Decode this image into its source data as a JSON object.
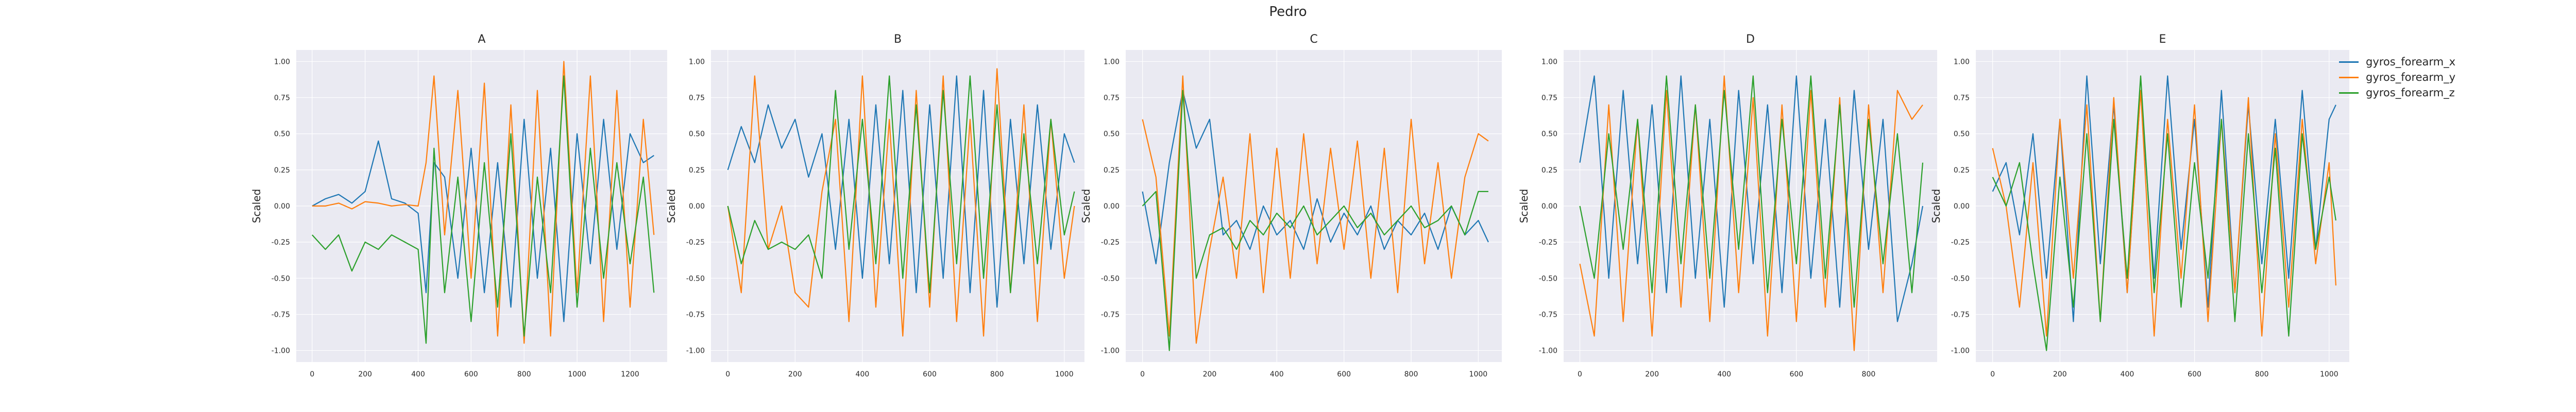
{
  "figure": {
    "title": "Pedro",
    "legend": [
      {
        "name": "gyros_forearm_x",
        "color": "#1f77b4"
      },
      {
        "name": "gyros_forearm_y",
        "color": "#ff7f0e"
      },
      {
        "name": "gyros_forearm_z",
        "color": "#2ca02c"
      }
    ]
  },
  "style": {
    "plot_background": "#eaeaf2",
    "grid_color": "#ffffff",
    "text_color": "#262626"
  },
  "chart_data": [
    {
      "type": "line",
      "title": "A",
      "xlabel": "",
      "ylabel": "Scaled",
      "xlim": [
        -60,
        1340
      ],
      "ylim": [
        -1.08,
        1.08
      ],
      "xticks": [
        0,
        200,
        400,
        600,
        800,
        1000,
        1200
      ],
      "yticks": [
        -1.0,
        -0.75,
        -0.5,
        -0.25,
        0.0,
        0.25,
        0.5,
        0.75,
        1.0
      ],
      "grid": true,
      "series": [
        {
          "name": "gyros_forearm_x",
          "color": "#1f77b4",
          "x": [
            0,
            50,
            100,
            150,
            200,
            250,
            300,
            350,
            400,
            430,
            460,
            500,
            550,
            600,
            650,
            700,
            750,
            800,
            850,
            900,
            950,
            1000,
            1050,
            1100,
            1150,
            1200,
            1250,
            1290
          ],
          "y": [
            0.0,
            0.05,
            0.08,
            0.02,
            0.1,
            0.45,
            0.05,
            0.02,
            -0.05,
            -0.6,
            0.3,
            0.2,
            -0.5,
            0.4,
            -0.6,
            0.3,
            -0.7,
            0.6,
            -0.5,
            0.4,
            -0.8,
            0.5,
            -0.4,
            0.6,
            -0.3,
            0.5,
            0.3,
            0.35
          ]
        },
        {
          "name": "gyros_forearm_y",
          "color": "#ff7f0e",
          "x": [
            0,
            50,
            100,
            150,
            200,
            250,
            300,
            350,
            400,
            430,
            460,
            500,
            550,
            600,
            650,
            700,
            750,
            800,
            850,
            900,
            950,
            1000,
            1050,
            1100,
            1150,
            1200,
            1250,
            1290
          ],
          "y": [
            0.0,
            0.0,
            0.02,
            -0.02,
            0.03,
            0.02,
            0.0,
            0.01,
            0.0,
            0.3,
            0.9,
            -0.2,
            0.8,
            -0.5,
            0.85,
            -0.9,
            0.7,
            -0.95,
            0.8,
            -0.9,
            1.0,
            -0.6,
            0.9,
            -0.8,
            0.8,
            -0.7,
            0.6,
            -0.2
          ]
        },
        {
          "name": "gyros_forearm_z",
          "color": "#2ca02c",
          "x": [
            0,
            50,
            100,
            150,
            200,
            250,
            300,
            350,
            400,
            430,
            460,
            500,
            550,
            600,
            650,
            700,
            750,
            800,
            850,
            900,
            950,
            1000,
            1050,
            1100,
            1150,
            1200,
            1250,
            1290
          ],
          "y": [
            -0.2,
            -0.3,
            -0.2,
            -0.45,
            -0.25,
            -0.3,
            -0.2,
            -0.25,
            -0.3,
            -0.95,
            0.4,
            -0.6,
            0.2,
            -0.8,
            0.3,
            -0.7,
            0.5,
            -0.9,
            0.2,
            -0.6,
            0.9,
            -0.7,
            0.4,
            -0.5,
            0.3,
            -0.4,
            0.2,
            -0.6
          ]
        }
      ]
    },
    {
      "type": "line",
      "title": "B",
      "xlabel": "",
      "ylabel": "Scaled",
      "xlim": [
        -50,
        1060
      ],
      "ylim": [
        -1.08,
        1.08
      ],
      "xticks": [
        0,
        200,
        400,
        600,
        800,
        1000
      ],
      "yticks": [
        -1.0,
        -0.75,
        -0.5,
        -0.25,
        0.0,
        0.25,
        0.5,
        0.75,
        1.0
      ],
      "grid": true,
      "series": [
        {
          "name": "gyros_forearm_x",
          "color": "#1f77b4",
          "x": [
            0,
            40,
            80,
            120,
            160,
            200,
            240,
            280,
            320,
            360,
            400,
            440,
            480,
            520,
            560,
            600,
            640,
            680,
            720,
            760,
            800,
            840,
            880,
            920,
            960,
            1000,
            1030
          ],
          "y": [
            0.25,
            0.55,
            0.3,
            0.7,
            0.4,
            0.6,
            0.2,
            0.5,
            -0.3,
            0.6,
            -0.5,
            0.7,
            -0.4,
            0.8,
            -0.6,
            0.7,
            -0.5,
            0.9,
            -0.6,
            0.8,
            -0.7,
            0.6,
            -0.4,
            0.7,
            -0.3,
            0.5,
            0.3
          ]
        },
        {
          "name": "gyros_forearm_y",
          "color": "#ff7f0e",
          "x": [
            0,
            40,
            80,
            120,
            160,
            200,
            240,
            280,
            320,
            360,
            400,
            440,
            480,
            520,
            560,
            600,
            640,
            680,
            720,
            760,
            800,
            840,
            880,
            920,
            960,
            1000,
            1030
          ],
          "y": [
            0.0,
            -0.6,
            0.9,
            -0.3,
            0.0,
            -0.6,
            -0.7,
            0.1,
            0.6,
            -0.8,
            0.9,
            -0.7,
            0.6,
            -0.9,
            0.8,
            -0.7,
            0.9,
            -0.8,
            0.6,
            -0.9,
            0.95,
            -0.6,
            0.7,
            -0.8,
            0.6,
            -0.5,
            0.0
          ]
        },
        {
          "name": "gyros_forearm_z",
          "color": "#2ca02c",
          "x": [
            0,
            40,
            80,
            120,
            160,
            200,
            240,
            280,
            320,
            360,
            400,
            440,
            480,
            520,
            560,
            600,
            640,
            680,
            720,
            760,
            800,
            840,
            880,
            920,
            960,
            1000,
            1030
          ],
          "y": [
            0.0,
            -0.4,
            -0.1,
            -0.3,
            -0.25,
            -0.3,
            -0.2,
            -0.5,
            0.8,
            -0.3,
            0.6,
            -0.4,
            0.9,
            -0.5,
            0.7,
            -0.6,
            0.8,
            -0.4,
            0.9,
            -0.5,
            0.7,
            -0.6,
            0.5,
            -0.4,
            0.6,
            -0.2,
            0.1
          ]
        }
      ]
    },
    {
      "type": "line",
      "title": "C",
      "xlabel": "",
      "ylabel": "Scaled",
      "xlim": [
        -50,
        1070
      ],
      "ylim": [
        -1.08,
        1.08
      ],
      "xticks": [
        0,
        200,
        400,
        600,
        800,
        1000
      ],
      "yticks": [
        -1.0,
        -0.75,
        -0.5,
        -0.25,
        0.0,
        0.25,
        0.5,
        0.75,
        1.0
      ],
      "grid": true,
      "series": [
        {
          "name": "gyros_forearm_x",
          "color": "#1f77b4",
          "x": [
            0,
            40,
            80,
            120,
            160,
            200,
            240,
            280,
            320,
            360,
            400,
            440,
            480,
            520,
            560,
            600,
            640,
            680,
            720,
            760,
            800,
            840,
            880,
            920,
            960,
            1000,
            1030
          ],
          "y": [
            0.1,
            -0.4,
            0.3,
            0.8,
            0.4,
            0.6,
            -0.2,
            -0.1,
            -0.3,
            0.0,
            -0.2,
            -0.1,
            -0.3,
            0.05,
            -0.25,
            -0.05,
            -0.2,
            0.0,
            -0.3,
            -0.1,
            -0.2,
            -0.05,
            -0.3,
            0.0,
            -0.2,
            -0.1,
            -0.25
          ]
        },
        {
          "name": "gyros_forearm_y",
          "color": "#ff7f0e",
          "x": [
            0,
            40,
            80,
            120,
            160,
            200,
            240,
            280,
            320,
            360,
            400,
            440,
            480,
            520,
            560,
            600,
            640,
            680,
            720,
            760,
            800,
            840,
            880,
            920,
            960,
            1000,
            1030
          ],
          "y": [
            0.6,
            0.2,
            -0.9,
            0.9,
            -0.95,
            -0.3,
            0.2,
            -0.5,
            0.5,
            -0.6,
            0.4,
            -0.5,
            0.5,
            -0.4,
            0.4,
            -0.3,
            0.45,
            -0.5,
            0.4,
            -0.6,
            0.6,
            -0.4,
            0.3,
            -0.5,
            0.2,
            0.5,
            0.45
          ]
        },
        {
          "name": "gyros_forearm_z",
          "color": "#2ca02c",
          "x": [
            0,
            40,
            80,
            120,
            160,
            200,
            240,
            280,
            320,
            360,
            400,
            440,
            480,
            520,
            560,
            600,
            640,
            680,
            720,
            760,
            800,
            840,
            880,
            920,
            960,
            1000,
            1030
          ],
          "y": [
            0.0,
            0.1,
            -1.0,
            0.8,
            -0.5,
            -0.2,
            -0.15,
            -0.3,
            -0.1,
            -0.2,
            -0.05,
            -0.15,
            0.0,
            -0.2,
            -0.1,
            0.0,
            -0.15,
            -0.05,
            -0.2,
            -0.1,
            0.0,
            -0.15,
            -0.1,
            0.0,
            -0.2,
            0.1,
            0.1
          ]
        }
      ]
    },
    {
      "type": "line",
      "title": "D",
      "xlabel": "",
      "ylabel": "Scaled",
      "xlim": [
        -45,
        990
      ],
      "ylim": [
        -1.08,
        1.08
      ],
      "xticks": [
        0,
        200,
        400,
        600,
        800
      ],
      "yticks": [
        -1.0,
        -0.75,
        -0.5,
        -0.25,
        0.0,
        0.25,
        0.5,
        0.75,
        1.0
      ],
      "grid": true,
      "series": [
        {
          "name": "gyros_forearm_x",
          "color": "#1f77b4",
          "x": [
            0,
            40,
            80,
            120,
            160,
            200,
            240,
            280,
            320,
            360,
            400,
            440,
            480,
            520,
            560,
            600,
            640,
            680,
            720,
            760,
            800,
            840,
            880,
            920,
            950
          ],
          "y": [
            0.3,
            0.9,
            -0.5,
            0.8,
            -0.4,
            0.7,
            -0.6,
            0.9,
            -0.5,
            0.6,
            -0.7,
            0.8,
            -0.4,
            0.7,
            -0.6,
            0.9,
            -0.5,
            0.6,
            -0.7,
            0.8,
            -0.3,
            0.6,
            -0.8,
            -0.4,
            0.0
          ]
        },
        {
          "name": "gyros_forearm_y",
          "color": "#ff7f0e",
          "x": [
            0,
            40,
            80,
            120,
            160,
            200,
            240,
            280,
            320,
            360,
            400,
            440,
            480,
            520,
            560,
            600,
            640,
            680,
            720,
            760,
            800,
            840,
            880,
            920,
            950
          ],
          "y": [
            -0.4,
            -0.9,
            0.7,
            -0.8,
            0.6,
            -0.9,
            0.8,
            -0.7,
            0.7,
            -0.8,
            0.9,
            -0.6,
            0.75,
            -0.9,
            0.7,
            -0.8,
            0.8,
            -0.7,
            0.75,
            -1.0,
            0.7,
            -0.6,
            0.8,
            0.6,
            0.7
          ]
        },
        {
          "name": "gyros_forearm_z",
          "color": "#2ca02c",
          "x": [
            0,
            40,
            80,
            120,
            160,
            200,
            240,
            280,
            320,
            360,
            400,
            440,
            480,
            520,
            560,
            600,
            640,
            680,
            720,
            760,
            800,
            840,
            880,
            920,
            950
          ],
          "y": [
            0.0,
            -0.5,
            0.5,
            -0.3,
            0.6,
            -0.6,
            0.9,
            -0.4,
            0.7,
            -0.5,
            0.8,
            -0.3,
            0.9,
            -0.6,
            0.6,
            -0.4,
            0.9,
            -0.5,
            0.7,
            -0.7,
            0.6,
            -0.4,
            0.5,
            -0.6,
            0.3
          ]
        }
      ]
    },
    {
      "type": "line",
      "title": "E",
      "xlabel": "",
      "ylabel": "Scaled",
      "xlim": [
        -50,
        1060
      ],
      "ylim": [
        -1.08,
        1.08
      ],
      "xticks": [
        0,
        200,
        400,
        600,
        800,
        1000
      ],
      "yticks": [
        -1.0,
        -0.75,
        -0.5,
        -0.25,
        0.0,
        0.25,
        0.5,
        0.75,
        1.0
      ],
      "grid": true,
      "series": [
        {
          "name": "gyros_forearm_x",
          "color": "#1f77b4",
          "x": [
            0,
            40,
            80,
            120,
            160,
            200,
            240,
            280,
            320,
            360,
            400,
            440,
            480,
            520,
            560,
            600,
            640,
            680,
            720,
            760,
            800,
            840,
            880,
            920,
            960,
            1000,
            1020
          ],
          "y": [
            0.1,
            0.3,
            -0.2,
            0.5,
            -0.5,
            0.6,
            -0.8,
            0.9,
            -0.4,
            0.7,
            -0.6,
            0.8,
            -0.5,
            0.9,
            -0.3,
            0.6,
            -0.7,
            0.8,
            -0.6,
            0.7,
            -0.4,
            0.6,
            -0.5,
            0.8,
            -0.3,
            0.6,
            0.7
          ]
        },
        {
          "name": "gyros_forearm_y",
          "color": "#ff7f0e",
          "x": [
            0,
            40,
            80,
            120,
            160,
            200,
            240,
            280,
            320,
            360,
            400,
            440,
            480,
            520,
            560,
            600,
            640,
            680,
            720,
            760,
            800,
            840,
            880,
            920,
            960,
            1000,
            1020
          ],
          "y": [
            0.4,
            0.0,
            -0.7,
            0.3,
            -0.9,
            0.6,
            -0.5,
            0.7,
            -0.8,
            0.75,
            -0.6,
            0.8,
            -0.9,
            0.6,
            -0.5,
            0.7,
            -0.8,
            0.6,
            -0.6,
            0.75,
            -0.9,
            0.5,
            -0.7,
            0.6,
            -0.4,
            0.3,
            -0.55
          ]
        },
        {
          "name": "gyros_forearm_z",
          "color": "#2ca02c",
          "x": [
            0,
            40,
            80,
            120,
            160,
            200,
            240,
            280,
            320,
            360,
            400,
            440,
            480,
            520,
            560,
            600,
            640,
            680,
            720,
            760,
            800,
            840,
            880,
            920,
            960,
            1000,
            1020
          ],
          "y": [
            0.2,
            0.0,
            0.3,
            -0.4,
            -1.0,
            0.2,
            -0.7,
            0.5,
            -0.8,
            0.6,
            -0.5,
            0.9,
            -0.6,
            0.5,
            -0.7,
            0.3,
            -0.5,
            0.6,
            -0.8,
            0.5,
            -0.6,
            0.4,
            -0.9,
            0.5,
            -0.3,
            0.2,
            -0.1
          ]
        }
      ]
    }
  ]
}
